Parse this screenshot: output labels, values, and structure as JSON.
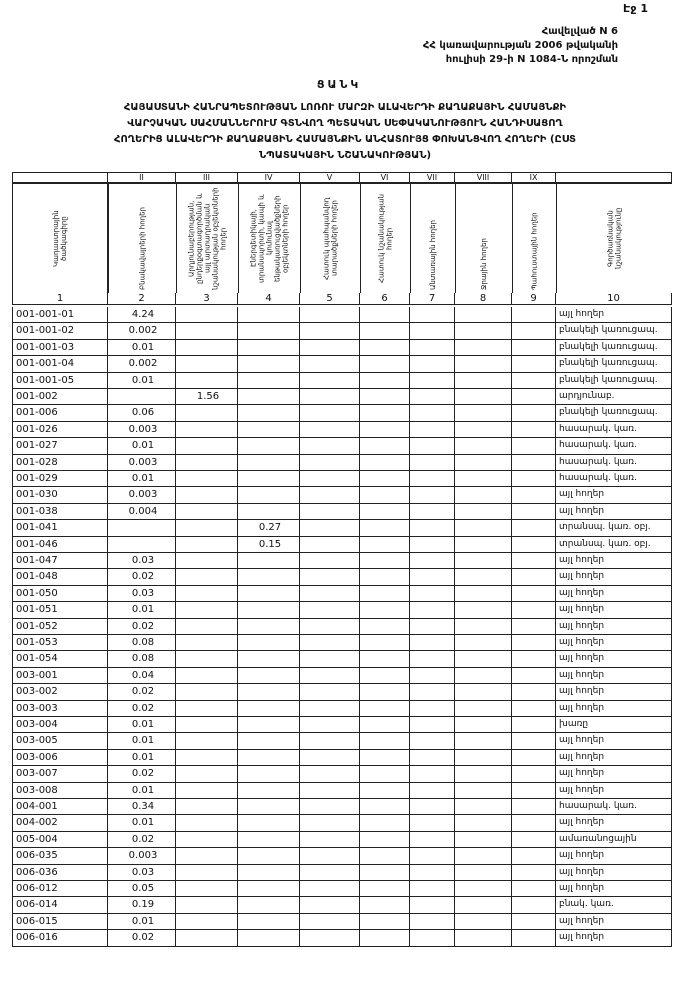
{
  "page_number": "Էջ 1",
  "header": {
    "lines": [
      "Հավելված N 6",
      "ՀՀ կառավարության 2006 թվականի",
      "հուլիսի 29-ի N 1084-Ն որոշման"
    ],
    "title": "ՑԱՆԿ",
    "subtitle": [
      "ՀԱՅԱՍՏԱՆԻ ՀԱՆՐԱՊԵՏՈՒԹՅԱՆ ԼՈՌՈՒ ՄԱՐԶԻ ԱԼԱՎԵՐԴԻ ՔԱՂԱՔԱՅԻՆ ՀԱՄԱՅՆՔԻ",
      "ՎԱՐՉԱԿԱՆ ՍԱՀՄԱՆՆԵՐՈՒՄ ԳՏՆՎՈՂ ՊԵՏԱԿԱՆ ՍԵՓԱԿԱՆՈՒԹՅՈՒՆ ՀԱՆԴԻՍԱՑՈՂ",
      "ՀՈՂԵՐԻՑ ԱԼԱՎԵՐԴԻ ՔԱՂԱՔԱՅԻՆ ՀԱՄԱՅՆՔԻՆ ԱՆՀԱՏՈՒՅՑ ՓՈԽԱՆՑՎՈՂ ՀՈՂԵՐԻ (ԸՍՏ",
      "ՆՊԱՏԱԿԱՅԻՆ ՆՇԱՆԱԿՈՒԹՅԱՆ)"
    ]
  },
  "table": {
    "roman": {
      "II": "II",
      "III": "III",
      "IV": "IV",
      "V": "V",
      "VI": "VI",
      "VII": "VII",
      "VIII": "VIII",
      "IX": "IX"
    },
    "headers": [
      "Կադաստրային ծածկագիրը",
      "Բնակավայրերի հողեր",
      "Արդյունաբերության, ընդերքօգտագործման և այլ արտադրական նշանակության օբյեկտների հողեր",
      "Էներգետիկայի, տրանսպորտի, կապի և կոմունալ ենթակառուցվածքների օբյեկտների հողեր",
      "Հատուկ պահպանվող տարածքների հողեր",
      "Հատուկ նշանակության հողեր",
      "Անտառային հողեր",
      "Ջրային հողեր",
      "Պահուստային հողեր",
      "Գործառնական նշանակությունը"
    ],
    "numbers": [
      "1",
      "2",
      "3",
      "4",
      "5",
      "6",
      "7",
      "8",
      "9",
      "10"
    ],
    "rows": [
      {
        "code": "001-001-01",
        "II": "4.24",
        "purpose": "այլ հողեր"
      },
      {
        "code": "001-001-02",
        "II": "0.002",
        "purpose": "բնակելի կառուցապ."
      },
      {
        "code": "001-001-03",
        "II": "0.01",
        "purpose": "բնակելի կառուցապ."
      },
      {
        "code": "001-001-04",
        "II": "0.002",
        "purpose": "բնակելի կառուցապ."
      },
      {
        "code": "001-001-05",
        "II": "0.01",
        "purpose": "բնակելի կառուցապ."
      },
      {
        "code": "001-002",
        "III": "1.56",
        "purpose": "արդյունաբ."
      },
      {
        "code": "001-006",
        "II": "0.06",
        "purpose": "բնակելի կառուցապ."
      },
      {
        "code": "001-026",
        "II": "0.003",
        "purpose": "հասարակ. կառ."
      },
      {
        "code": "001-027",
        "II": "0.01",
        "purpose": "հասարակ. կառ."
      },
      {
        "code": "001-028",
        "II": "0.003",
        "purpose": "հասարակ. կառ."
      },
      {
        "code": "001-029",
        "II": "0.01",
        "purpose": "հասարակ. կառ."
      },
      {
        "code": "001-030",
        "II": "0.003",
        "purpose": "այլ հողեր"
      },
      {
        "code": "001-038",
        "II": "0.004",
        "purpose": "այլ հողեր"
      },
      {
        "code": "001-041",
        "IV": "0.27",
        "purpose": "տրանսպ. կառ. օբյ."
      },
      {
        "code": "001-046",
        "IV": "0.15",
        "purpose": "տրանսպ. կառ. օբյ."
      },
      {
        "code": "001-047",
        "II": "0.03",
        "purpose": "այլ հողեր"
      },
      {
        "code": "001-048",
        "II": "0.02",
        "purpose": "այլ հողեր"
      },
      {
        "code": "001-050",
        "II": "0.03",
        "purpose": "այլ հողեր"
      },
      {
        "code": "001-051",
        "II": "0.01",
        "purpose": "այլ հողեր"
      },
      {
        "code": "001-052",
        "II": "0.02",
        "purpose": "այլ հողեր"
      },
      {
        "code": "001-053",
        "II": "0.08",
        "purpose": "այլ հողեր"
      },
      {
        "code": "001-054",
        "II": "0.08",
        "purpose": "այլ հողեր"
      },
      {
        "code": "003-001",
        "II": "0.04",
        "purpose": "այլ հողեր"
      },
      {
        "code": "003-002",
        "II": "0.02",
        "purpose": "այլ հողեր"
      },
      {
        "code": "003-003",
        "II": "0.02",
        "purpose": "այլ հողեր"
      },
      {
        "code": "003-004",
        "II": "0.01",
        "purpose": "խառը"
      },
      {
        "code": "003-005",
        "II": "0.01",
        "purpose": "այլ հողեր"
      },
      {
        "code": "003-006",
        "II": "0.01",
        "purpose": "այլ հողեր"
      },
      {
        "code": "003-007",
        "II": "0.02",
        "purpose": "այլ հողեր"
      },
      {
        "code": "003-008",
        "II": "0.01",
        "purpose": "այլ հողեր"
      },
      {
        "code": "004-001",
        "II": "0.34",
        "purpose": "հասարակ. կառ."
      },
      {
        "code": "004-002",
        "II": "0.01",
        "purpose": "այլ հողեր"
      },
      {
        "code": "005-004",
        "II": "0.02",
        "purpose": "ամառանոցային"
      },
      {
        "code": "006-035",
        "II": "0.003",
        "purpose": "այլ հողեր"
      },
      {
        "code": "006-036",
        "II": "0.03",
        "purpose": "այլ հողեր"
      },
      {
        "code": "006-012",
        "II": "0.05",
        "purpose": "այլ հողեր"
      },
      {
        "code": "006-014",
        "II": "0.19",
        "purpose": "բնակ. կառ."
      },
      {
        "code": "006-015",
        "II": "0.01",
        "purpose": "այլ հողեր"
      },
      {
        "code": "006-016",
        "II": "0.02",
        "purpose": "այլ հողեր"
      }
    ]
  }
}
